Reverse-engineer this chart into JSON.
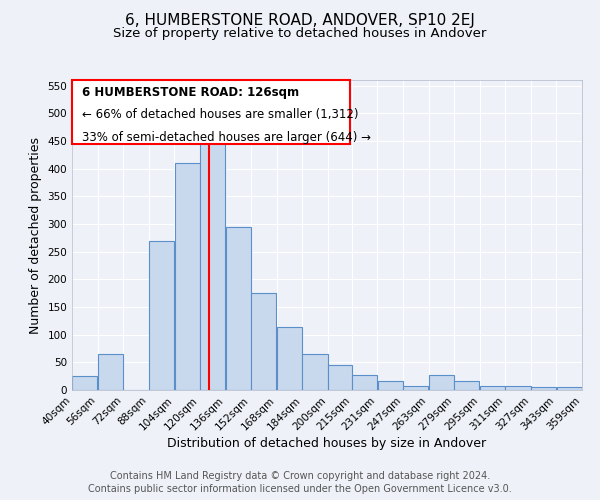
{
  "title": "6, HUMBERSTONE ROAD, ANDOVER, SP10 2EJ",
  "subtitle": "Size of property relative to detached houses in Andover",
  "xlabel": "Distribution of detached houses by size in Andover",
  "ylabel": "Number of detached properties",
  "bar_left_edges": [
    40,
    56,
    72,
    88,
    104,
    120,
    136,
    152,
    168,
    184,
    200,
    215,
    231,
    247,
    263,
    279,
    295,
    311,
    327,
    343
  ],
  "bar_widths": [
    16,
    16,
    16,
    16,
    16,
    16,
    16,
    16,
    16,
    16,
    15,
    16,
    16,
    16,
    16,
    16,
    16,
    16,
    16,
    16
  ],
  "bar_heights": [
    25,
    65,
    0,
    270,
    410,
    455,
    295,
    175,
    113,
    65,
    45,
    27,
    16,
    7,
    27,
    16,
    7,
    7,
    5,
    5
  ],
  "bar_facecolor": "#c9d9ed",
  "bar_edgecolor": "#5b8fc9",
  "property_line_x": 126,
  "property_line_color": "red",
  "ylim": [
    0,
    560
  ],
  "yticks": [
    0,
    50,
    100,
    150,
    200,
    250,
    300,
    350,
    400,
    450,
    500,
    550
  ],
  "xtick_labels": [
    "40sqm",
    "56sqm",
    "72sqm",
    "88sqm",
    "104sqm",
    "120sqm",
    "136sqm",
    "152sqm",
    "168sqm",
    "184sqm",
    "200sqm",
    "215sqm",
    "231sqm",
    "247sqm",
    "263sqm",
    "279sqm",
    "295sqm",
    "311sqm",
    "327sqm",
    "343sqm",
    "359sqm"
  ],
  "annotation_box_text_line1": "6 HUMBERSTONE ROAD: 126sqm",
  "annotation_box_text_line2": "← 66% of detached houses are smaller (1,312)",
  "annotation_box_text_line3": "33% of semi-detached houses are larger (644) →",
  "footer_line1": "Contains HM Land Registry data © Crown copyright and database right 2024.",
  "footer_line2": "Contains public sector information licensed under the Open Government Licence v3.0.",
  "bg_color": "#eef2f8",
  "grid_color": "#ffffff",
  "title_fontsize": 11,
  "subtitle_fontsize": 9.5,
  "axis_label_fontsize": 9,
  "tick_fontsize": 7.5,
  "annotation_fontsize": 8.5,
  "footer_fontsize": 7
}
